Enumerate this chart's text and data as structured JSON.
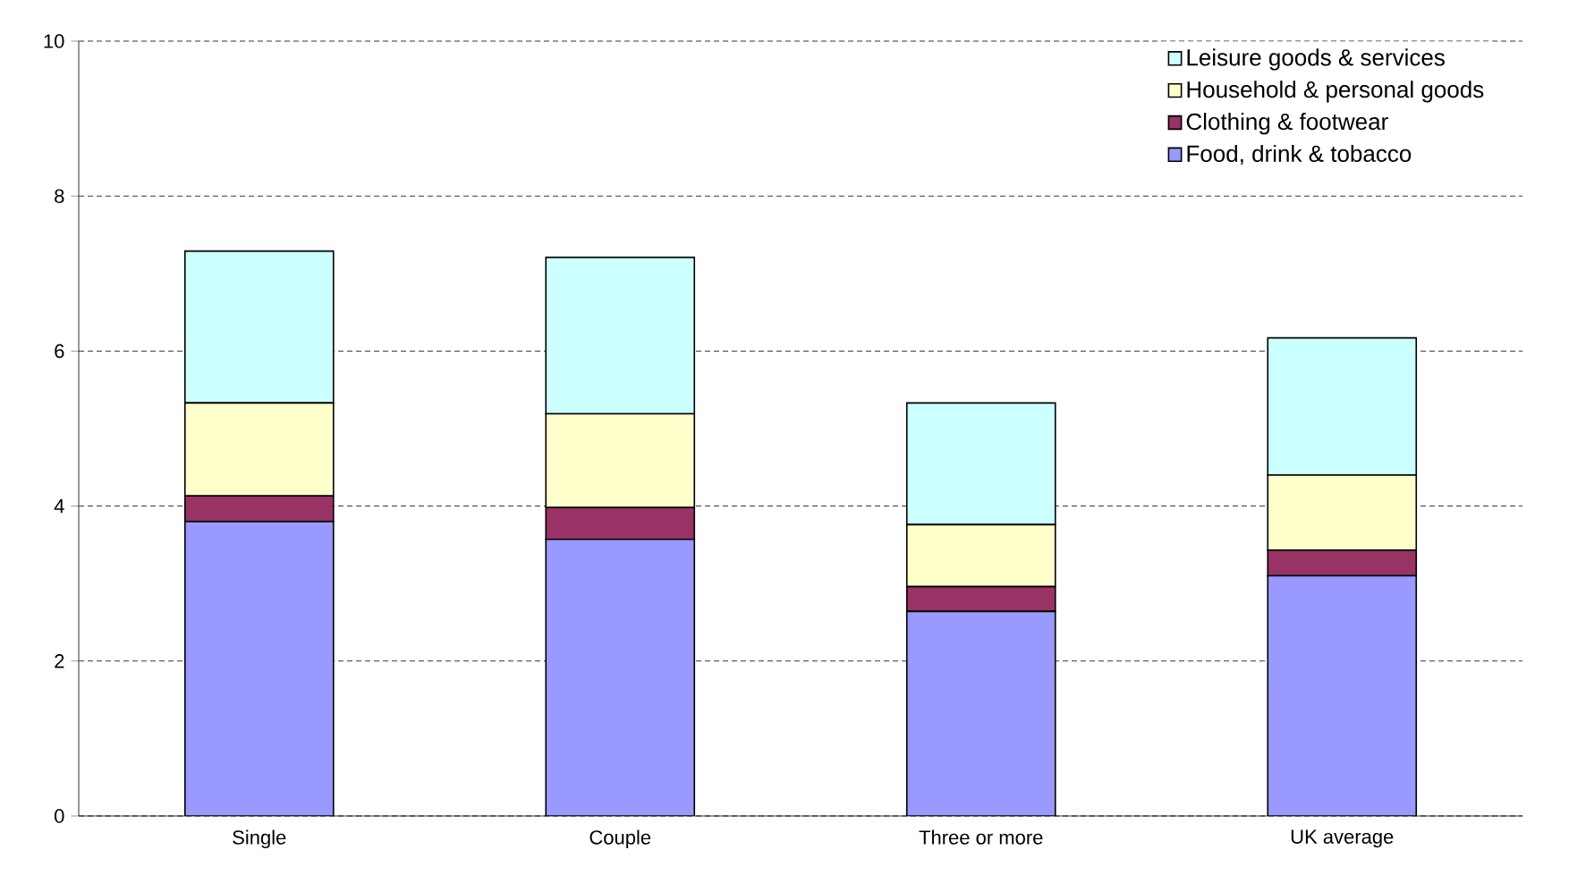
{
  "chart_data": {
    "type": "bar",
    "stacked": true,
    "categories": [
      "Single",
      "Couple",
      "Three or more",
      "UK average"
    ],
    "series": [
      {
        "name": "Food, drink & tobacco",
        "color": "#9999ff",
        "values": [
          3.8,
          3.57,
          2.64,
          3.1
        ]
      },
      {
        "name": "Clothing & footwear",
        "color": "#993366",
        "values": [
          0.33,
          0.41,
          0.32,
          0.33
        ]
      },
      {
        "name": "Household & personal goods",
        "color": "#ffffcc",
        "values": [
          1.2,
          1.21,
          0.8,
          0.97
        ]
      },
      {
        "name": "Leisure goods & services",
        "color": "#ccffff",
        "values": [
          1.96,
          2.02,
          1.57,
          1.77
        ]
      }
    ],
    "ylim": [
      0,
      10
    ],
    "yticks": [
      0,
      2,
      4,
      6,
      8,
      10
    ],
    "grid": "y",
    "legend": "top right"
  }
}
